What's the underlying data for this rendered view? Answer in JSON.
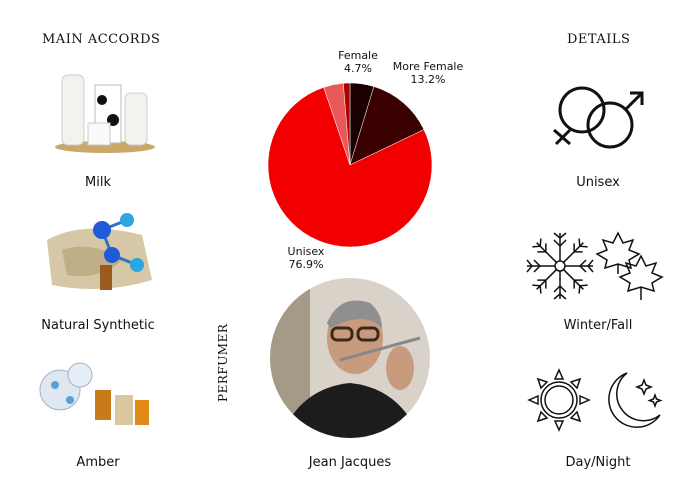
{
  "left": {
    "heading": "MAIN ACCORDS",
    "items": [
      {
        "label": "Milk",
        "icon": "milk-bottles-image"
      },
      {
        "label": "Natural Synthetic",
        "icon": "molecule-fabric-image"
      },
      {
        "label": "Amber",
        "icon": "amber-bottles-image"
      }
    ]
  },
  "right": {
    "heading": "DETAILS",
    "items": [
      {
        "label": "Unisex",
        "icon": "gender-symbols-icon"
      },
      {
        "label": "Winter/Fall",
        "icon": "snowflake-leaves-icon"
      },
      {
        "label": "Day/Night",
        "icon": "sun-moon-icon"
      }
    ]
  },
  "perfumer": {
    "heading": "PERFUMER",
    "name": "Jean Jacques"
  },
  "chart_data": {
    "type": "pie",
    "start": "12 o'clock",
    "direction": "clockwise",
    "slices": [
      {
        "name": "Female",
        "value": 4.7,
        "label": "4.7%",
        "color": "#1a0000"
      },
      {
        "name": "More Female",
        "value": 13.2,
        "label": "13.2%",
        "color": "#3b0000"
      },
      {
        "name": "Unisex",
        "value": 76.9,
        "label": "76.9%",
        "color": "#f20000"
      },
      {
        "name": "",
        "value": 3.9,
        "label": "",
        "color": "#e85a5a"
      },
      {
        "name": "",
        "value": 1.3,
        "label": "",
        "color": "#b00000"
      }
    ]
  }
}
